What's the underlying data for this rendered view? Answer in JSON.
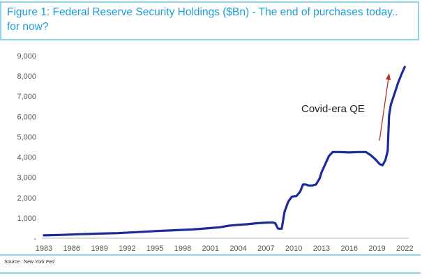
{
  "chart_data": {
    "type": "line",
    "title": "Figure 1: Federal Reserve Security Holdings ($Bn) - The end of purchases today.. for now?",
    "title_lines": [
      "Figure 1: Federal Reserve Security Holdings ($Bn) - The end of purchases today..",
      "for now?"
    ],
    "xlabel": "",
    "ylabel": "",
    "x_ticks": [
      "1983",
      "1986",
      "1989",
      "1992",
      "1995",
      "1998",
      "2001",
      "2004",
      "2007",
      "2010",
      "2013",
      "2016",
      "2019",
      "2022"
    ],
    "y_ticks": [
      "-",
      "1,000",
      "2,000",
      "3,000",
      "4,000",
      "5,000",
      "6,000",
      "7,000",
      "8,000",
      "9,000"
    ],
    "xlim": [
      1983,
      2022.2
    ],
    "ylim": [
      0,
      9000
    ],
    "grid": false,
    "legend": "none",
    "annotation": "Covid-era QE",
    "source": "Source : New York Fed",
    "colors": {
      "line": "#1d2a9a",
      "arrow": "#b0302a",
      "title": "#1e9dd4",
      "border": "#8fd3ee"
    },
    "series": [
      {
        "x": [
          1983,
          1985,
          1987,
          1989,
          1991,
          1993,
          1995,
          1997,
          1999,
          2001,
          2002,
          2003,
          2004,
          2005,
          2006,
          2007,
          2007.7,
          2008.0,
          2008.3,
          2008.7,
          2009.0,
          2009.4,
          2009.8,
          2010.3,
          2010.7,
          2011.0,
          2011.3,
          2011.6,
          2012.0,
          2012.4,
          2012.8,
          2013.0,
          2013.4,
          2013.8,
          2014.2,
          2014.6,
          2015.0,
          2016.0,
          2017.0,
          2017.8,
          2018.3,
          2018.8,
          2019.3,
          2019.6,
          2019.9,
          2020.15,
          2020.3,
          2020.5,
          2020.9,
          2021.3,
          2021.7,
          2022.0
        ],
        "values": [
          140,
          165,
          200,
          225,
          250,
          300,
          350,
          390,
          430,
          500,
          540,
          620,
          660,
          690,
          740,
          770,
          780,
          740,
          470,
          470,
          1300,
          1800,
          2050,
          2080,
          2300,
          2650,
          2650,
          2600,
          2600,
          2650,
          2950,
          3250,
          3650,
          4050,
          4250,
          4250,
          4250,
          4230,
          4250,
          4250,
          4100,
          3900,
          3650,
          3600,
          3850,
          4300,
          6050,
          6600,
          7150,
          7700,
          8150,
          8450
        ]
      }
    ]
  }
}
